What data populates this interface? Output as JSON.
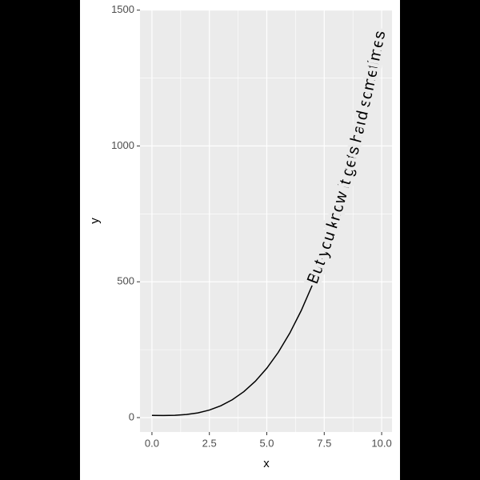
{
  "chart_data": {
    "type": "line",
    "x_label": "x",
    "y_label": "y",
    "annotation": "But you know it gets hard sometimes",
    "x": [
      0,
      0.5,
      1,
      1.5,
      2,
      2.5,
      3,
      3.5,
      4,
      4.5,
      5,
      5.5,
      6,
      6.5,
      7,
      7.5,
      8,
      8.5,
      9,
      9.5,
      10
    ],
    "values": [
      8,
      7.7,
      8.4,
      11.3,
      17.4,
      27.8,
      43.6,
      65.8,
      95.5,
      133.8,
      181.8,
      240.4,
      310.9,
      394.2,
      491.5,
      603.8,
      732.2,
      877.7,
      1041.5,
      1224.6,
      1428
    ],
    "color": "#000000",
    "xlim": [
      -0.52,
      10.45
    ],
    "ylim": [
      -53,
      1502
    ],
    "xticks": [
      {
        "value": 0,
        "label": "0.0"
      },
      {
        "value": 2.5,
        "label": "2.5"
      },
      {
        "value": 5,
        "label": "5.0"
      },
      {
        "value": 7.5,
        "label": "7.5"
      },
      {
        "value": 10,
        "label": "10.0"
      }
    ],
    "yticks": [
      0,
      500,
      1000,
      1500
    ],
    "grid": true
  }
}
